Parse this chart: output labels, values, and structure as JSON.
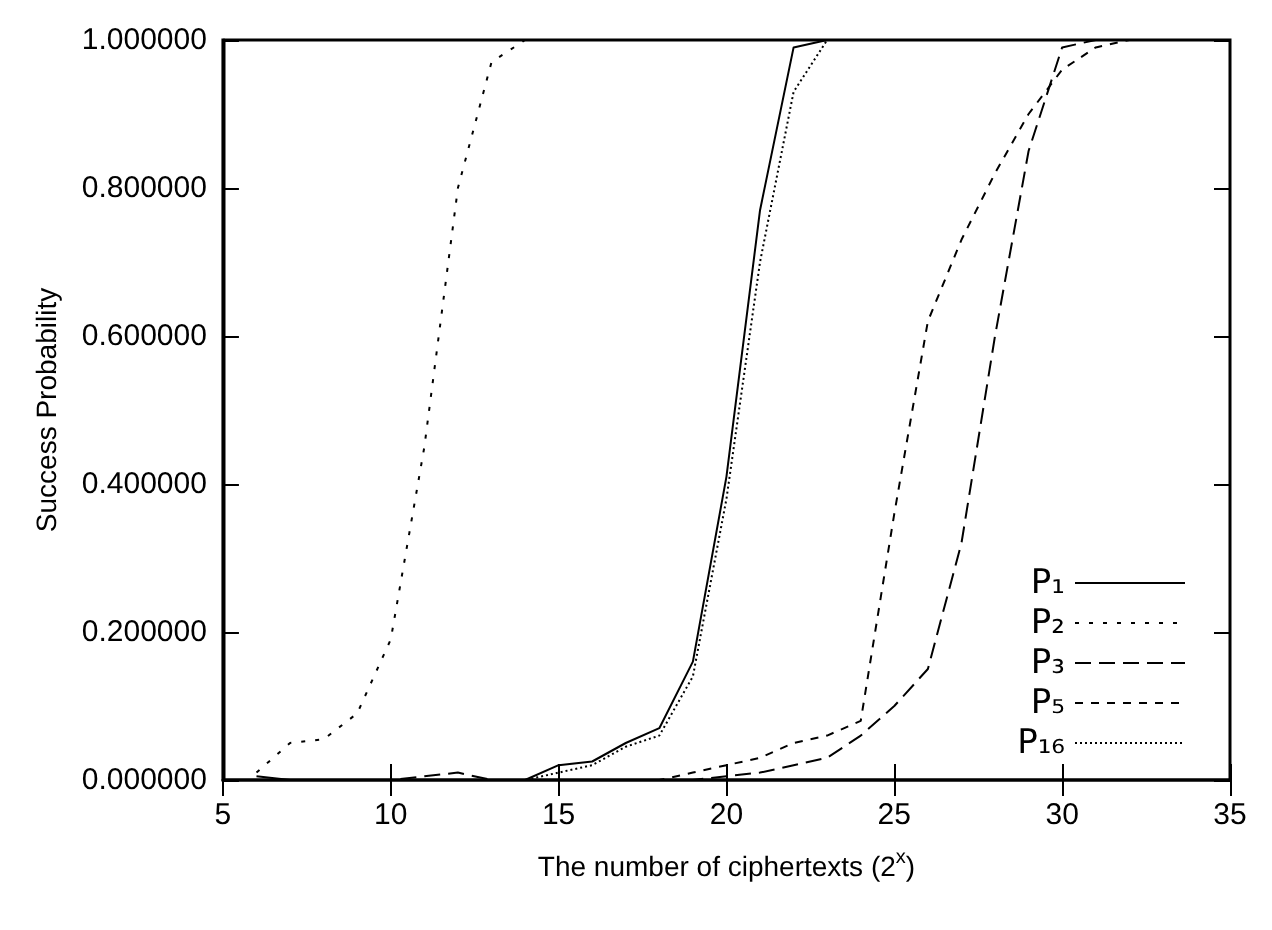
{
  "chart_data": {
    "type": "line",
    "xlabel": "The number of ciphertexts (2$^{x}$)",
    "ylabel": "Success Probability",
    "x": [
      6,
      7,
      8,
      9,
      10,
      11,
      12,
      13,
      14,
      15,
      16,
      17,
      18,
      19,
      20,
      21,
      22,
      23,
      24,
      25,
      26,
      27,
      28,
      29,
      30,
      31,
      32,
      33,
      34,
      35
    ],
    "xlim": [
      5,
      35
    ],
    "xticks": [
      5,
      10,
      15,
      20,
      25,
      30,
      35
    ],
    "ylim": [
      0,
      1
    ],
    "yticks": [
      {
        "value": 0,
        "label": "0.000000"
      },
      {
        "value": 0.2,
        "label": "0.200000"
      },
      {
        "value": 0.4,
        "label": "0.400000"
      },
      {
        "value": 0.6,
        "label": "0.600000"
      },
      {
        "value": 0.8,
        "label": "0.800000"
      },
      {
        "value": 1,
        "label": "1.000000"
      }
    ],
    "grid": false,
    "legend": "bottom right",
    "marker": "none",
    "series": [
      {
        "name": "P₁",
        "color": "#000000",
        "line_style": "solid",
        "values": [
          0.005,
          0,
          0,
          0,
          0,
          0,
          0,
          0,
          0,
          0.02,
          0.025,
          0.05,
          0.07,
          0.16,
          0.41,
          0.77,
          0.99,
          1,
          1,
          1,
          1,
          1,
          1,
          1,
          1,
          1,
          1,
          1,
          1,
          1
        ]
      },
      {
        "name": "P₂",
        "color": "#000000",
        "line_style": "dotted",
        "values": [
          0.01,
          0.05,
          0.055,
          0.09,
          0.19,
          0.45,
          0.8,
          0.97,
          1,
          1,
          1,
          1,
          1,
          1,
          1,
          1,
          1,
          1,
          1,
          1,
          1,
          1,
          1,
          1,
          1,
          1,
          1,
          1,
          1,
          1
        ]
      },
      {
        "name": "P₃",
        "color": "#000000",
        "line_style": "dashed",
        "values": [
          0,
          0,
          0,
          0,
          0,
          0.005,
          0.01,
          0,
          0,
          0,
          0,
          0,
          0,
          0,
          0.005,
          0.01,
          0.02,
          0.03,
          0.06,
          0.1,
          0.15,
          0.32,
          0.6,
          0.85,
          0.99,
          1,
          1,
          1,
          1,
          1
        ]
      },
      {
        "name": "P₅",
        "color": "#000000",
        "line_style": "dashed",
        "values": [
          0,
          0,
          0,
          0,
          0,
          0,
          0,
          0,
          0,
          0,
          0,
          0,
          0,
          0.01,
          0.02,
          0.03,
          0.05,
          0.06,
          0.08,
          0.36,
          0.62,
          0.73,
          0.82,
          0.9,
          0.96,
          0.99,
          1,
          1,
          1,
          1
        ]
      },
      {
        "name": "P₁₆",
        "color": "#000000",
        "line_style": "dotted",
        "values": [
          0,
          0,
          0,
          0,
          0,
          0,
          0,
          0,
          0,
          0.01,
          0.02,
          0.045,
          0.06,
          0.14,
          0.38,
          0.7,
          0.93,
          1,
          1,
          1,
          1,
          1,
          1,
          1,
          1,
          1,
          1,
          1,
          1,
          1
        ]
      }
    ]
  }
}
